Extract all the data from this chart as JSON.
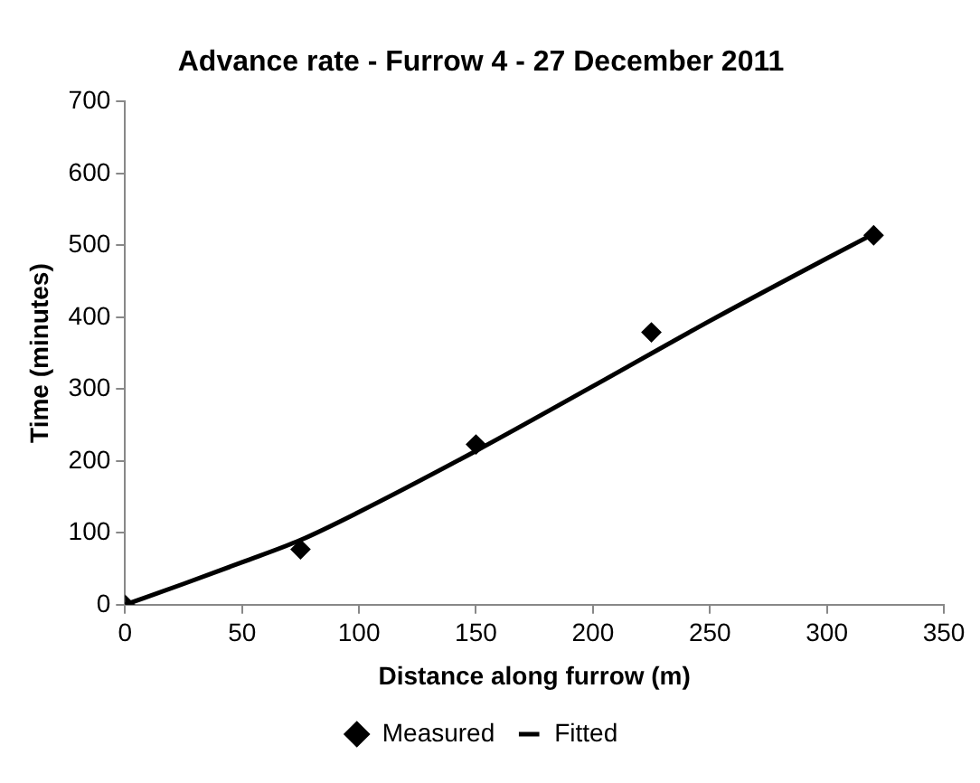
{
  "chart_data": {
    "type": "scatter",
    "title": "Advance rate - Furrow 4 - 27 December 2011",
    "xlabel": "Distance along furrow (m)",
    "ylabel": "Time (minutes)",
    "xlim": [
      0,
      350
    ],
    "xticks": [
      0,
      50,
      100,
      150,
      200,
      250,
      300,
      350
    ],
    "ylim": [
      0,
      700
    ],
    "yticks": [
      0,
      100,
      200,
      300,
      400,
      500,
      600,
      700
    ],
    "grid": false,
    "legend": "bottom",
    "series": [
      {
        "name": "Measured",
        "color": "#000000",
        "marker": "diamond",
        "x": [
          0,
          75,
          150,
          225,
          320
        ],
        "values": [
          0,
          77,
          223,
          379,
          514
        ]
      },
      {
        "name": "Fitted",
        "type": "line",
        "color": "#000000",
        "marker": "none",
        "line_style": "solid",
        "x": [
          0,
          25,
          50,
          75,
          100,
          150,
          200,
          250,
          300,
          320
        ],
        "values": [
          0,
          29,
          59,
          90,
          129,
          214,
          304,
          395,
          482,
          516
        ]
      }
    ]
  }
}
